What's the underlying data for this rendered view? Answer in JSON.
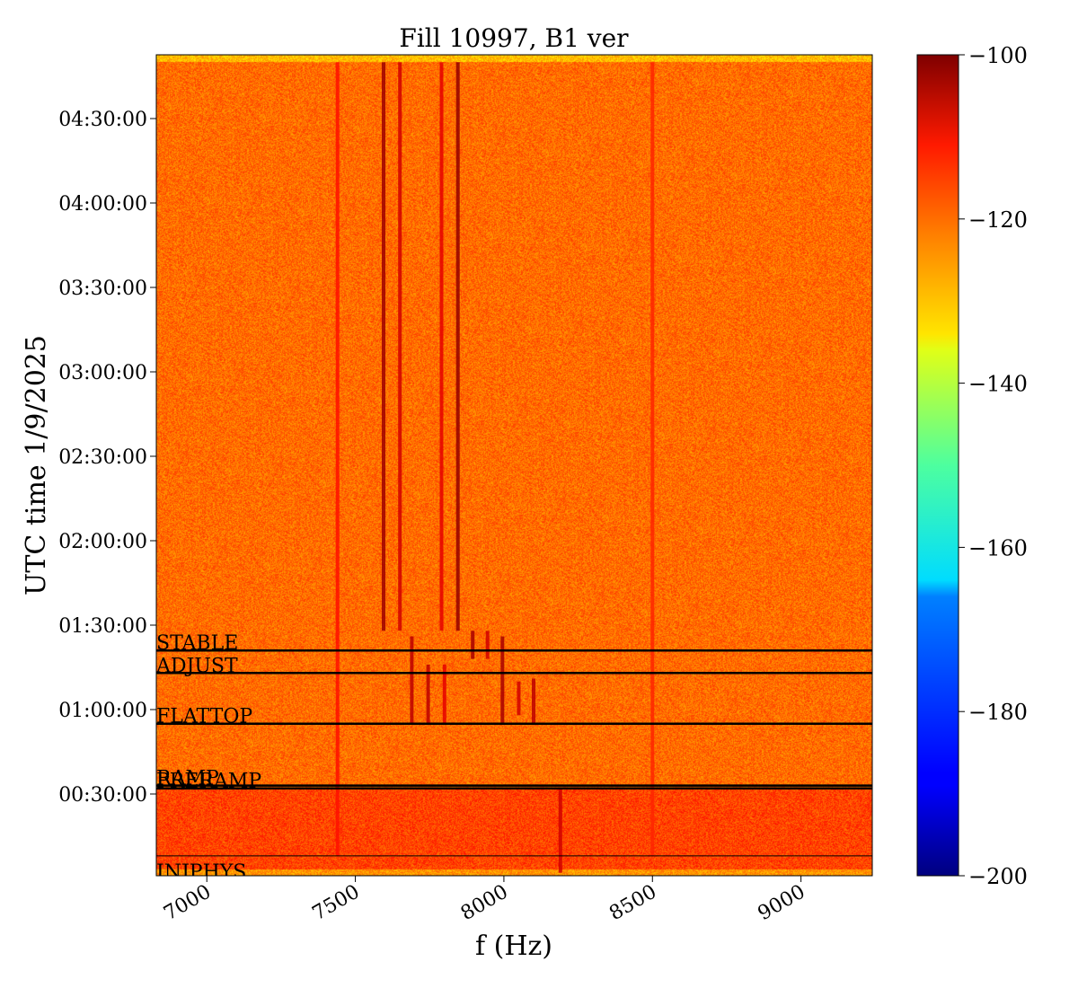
{
  "chart_data": {
    "type": "heatmap",
    "title": "Fill 10997, B1 ver",
    "xlabel": "f (Hz)",
    "ylabel": "UTC time 1/9/2025",
    "xlim": [
      6830,
      9240
    ],
    "ylim_minutes": [
      0,
      175
    ],
    "x_ticks": [
      {
        "value": 7000,
        "label": "7000"
      },
      {
        "value": 7500,
        "label": "7500"
      },
      {
        "value": 8000,
        "label": "8000"
      },
      {
        "value": 8500,
        "label": "8500"
      },
      {
        "value": 9000,
        "label": "9000"
      }
    ],
    "y_ticks": [
      {
        "minutes": 30,
        "label": "00:30:00"
      },
      {
        "minutes": 60,
        "label": "01:00:00"
      },
      {
        "minutes": 90,
        "label": "01:30:00"
      },
      {
        "minutes": 120,
        "label": "02:00:00"
      },
      {
        "minutes": 150,
        "label": "02:30:00"
      },
      {
        "minutes": 180,
        "label": "03:00:00"
      },
      {
        "minutes": 210,
        "label": "03:30:00"
      },
      {
        "minutes": 240,
        "label": "04:00:00"
      },
      {
        "minutes": 270,
        "label": "04:30:00"
      }
    ],
    "colorbar": {
      "colormap": "jet",
      "range": [
        -200,
        -100
      ],
      "ticks": [
        {
          "value": -100,
          "label": "−100"
        },
        {
          "value": -120,
          "label": "−120"
        },
        {
          "value": -140,
          "label": "−140"
        },
        {
          "value": -160,
          "label": "−160"
        },
        {
          "value": -180,
          "label": "−180"
        },
        {
          "value": -200,
          "label": "−200"
        }
      ]
    },
    "background_level": -123,
    "beam_modes": [
      {
        "label": "INJPHYS",
        "minutes": 8
      },
      {
        "label": "PRERAMP",
        "minutes": 32
      },
      {
        "label": "RAMP",
        "minutes": 33
      },
      {
        "label": "FLATTOP",
        "minutes": 55
      },
      {
        "label": "ADJUST",
        "minutes": 73
      },
      {
        "label": "STABLE",
        "minutes": 81
      }
    ],
    "lines": [
      {
        "freq": 7440,
        "t_start": 8,
        "t_end": 290,
        "level": -114
      },
      {
        "freq": 7595,
        "t_start": 88,
        "t_end": 290,
        "level": -103
      },
      {
        "freq": 7650,
        "t_start": 88,
        "t_end": 290,
        "level": -108
      },
      {
        "freq": 7790,
        "t_start": 88,
        "t_end": 290,
        "level": -110
      },
      {
        "freq": 7845,
        "t_start": 88,
        "t_end": 290,
        "level": -102
      },
      {
        "freq": 8500,
        "t_start": 8,
        "t_end": 290,
        "level": -116
      },
      {
        "freq": 7690,
        "t_start": 55,
        "t_end": 86,
        "level": -106
      },
      {
        "freq": 7745,
        "t_start": 55,
        "t_end": 76,
        "level": -106
      },
      {
        "freq": 7800,
        "t_start": 55,
        "t_end": 76,
        "level": -110
      },
      {
        "freq": 7895,
        "t_start": 78,
        "t_end": 88,
        "level": -104
      },
      {
        "freq": 7945,
        "t_start": 78,
        "t_end": 88,
        "level": -108
      },
      {
        "freq": 7995,
        "t_start": 55,
        "t_end": 86,
        "level": -104
      },
      {
        "freq": 8050,
        "t_start": 58,
        "t_end": 70,
        "level": -108
      },
      {
        "freq": 8100,
        "t_start": 55,
        "t_end": 71,
        "level": -106
      },
      {
        "freq": 8190,
        "t_start": 2,
        "t_end": 32,
        "level": -108
      }
    ]
  }
}
